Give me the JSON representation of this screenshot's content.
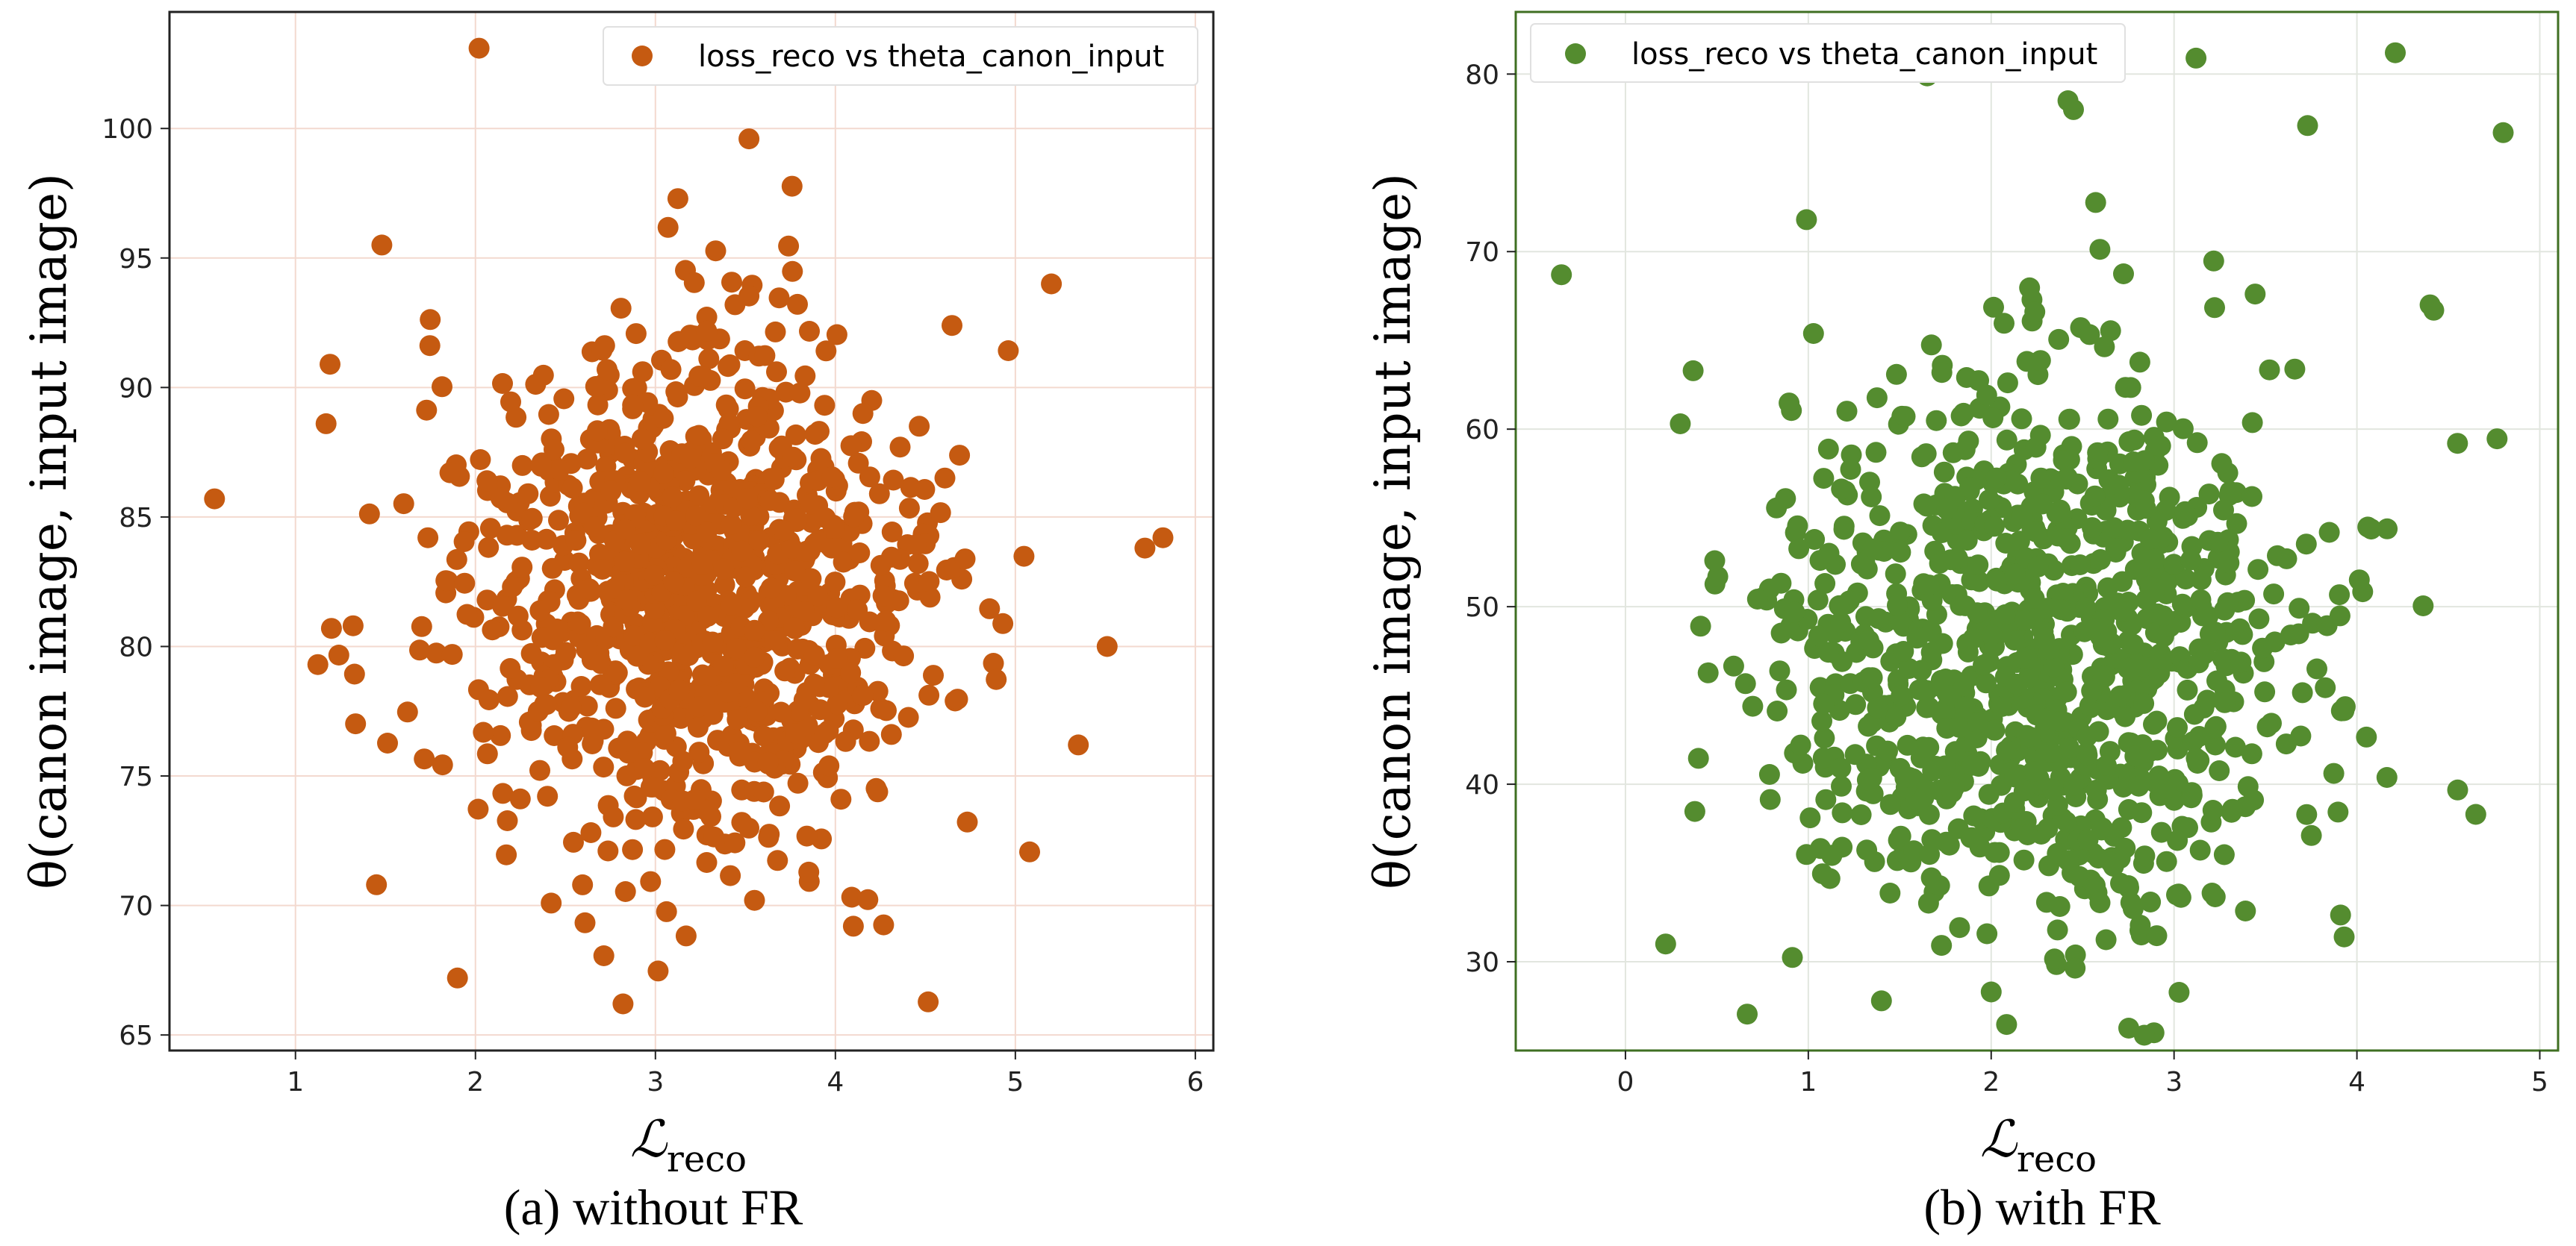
{
  "chart_data": [
    {
      "type": "scatter",
      "panel": "a",
      "caption": "(a) without FR",
      "legend_label": "loss_reco vs theta_canon_input",
      "legend_position": "top-right",
      "color": "#c55a11",
      "grid_color": "#f3d9cf",
      "xlabel": "ℒ",
      "xlabel_sub": "reco",
      "ylabel": "θ(canon image, input image)",
      "xlim": [
        0.3,
        6.1
      ],
      "ylim": [
        64.4,
        104.5
      ],
      "xticks": [
        1,
        2,
        3,
        4,
        5,
        6
      ],
      "yticks": [
        65,
        70,
        75,
        80,
        85,
        90,
        95,
        100
      ],
      "grid": true,
      "n_points": 1000,
      "center": [
        3.2,
        82.0
      ],
      "spread": [
        0.65,
        5.2
      ],
      "seed": 12345,
      "outliers": [
        [
          0.55,
          85.7
        ],
        [
          2.02,
          103.1
        ],
        [
          1.17,
          88.6
        ],
        [
          1.48,
          95.5
        ],
        [
          5.82,
          84.2
        ],
        [
          5.72,
          83.8
        ],
        [
          5.51,
          80.0
        ],
        [
          2.82,
          66.2
        ],
        [
          1.9,
          67.2
        ],
        [
          4.1,
          69.2
        ],
        [
          5.2,
          94.0
        ],
        [
          3.52,
          99.6
        ],
        [
          1.45,
          70.8
        ],
        [
          5.35,
          76.2
        ],
        [
          1.2,
          80.7
        ],
        [
          1.32,
          80.8
        ]
      ]
    },
    {
      "type": "scatter",
      "panel": "b",
      "caption": "(b) with FR",
      "legend_label": "loss_reco vs theta_canon_input",
      "legend_position": "top-left",
      "color": "#548c2f",
      "grid_color": "#e2e6df",
      "xlabel": "ℒ",
      "xlabel_sub": "reco",
      "ylabel": "θ(canon image, input image)",
      "xlim": [
        -0.6,
        5.1
      ],
      "ylim": [
        25.0,
        83.5
      ],
      "xticks": [
        0,
        1,
        2,
        3,
        4,
        5
      ],
      "yticks": [
        30,
        40,
        50,
        60,
        70,
        80
      ],
      "grid": true,
      "n_points": 1000,
      "center": [
        2.25,
        47.5
      ],
      "spread": [
        0.75,
        7.6
      ],
      "seed": 67890,
      "outliers": [
        [
          -0.35,
          68.7
        ],
        [
          0.99,
          71.8
        ],
        [
          2.45,
          78.0
        ],
        [
          2.42,
          78.5
        ],
        [
          3.12,
          80.9
        ],
        [
          1.65,
          79.9
        ],
        [
          4.21,
          81.2
        ],
        [
          4.8,
          76.7
        ],
        [
          3.73,
          77.1
        ],
        [
          4.65,
          38.3
        ],
        [
          3.93,
          31.4
        ],
        [
          0.22,
          31.0
        ],
        [
          1.4,
          27.8
        ],
        [
          2.0,
          28.3
        ],
        [
          0.3,
          60.3
        ],
        [
          4.55,
          59.2
        ],
        [
          4.42,
          66.7
        ],
        [
          4.4,
          67.0
        ]
      ]
    }
  ]
}
